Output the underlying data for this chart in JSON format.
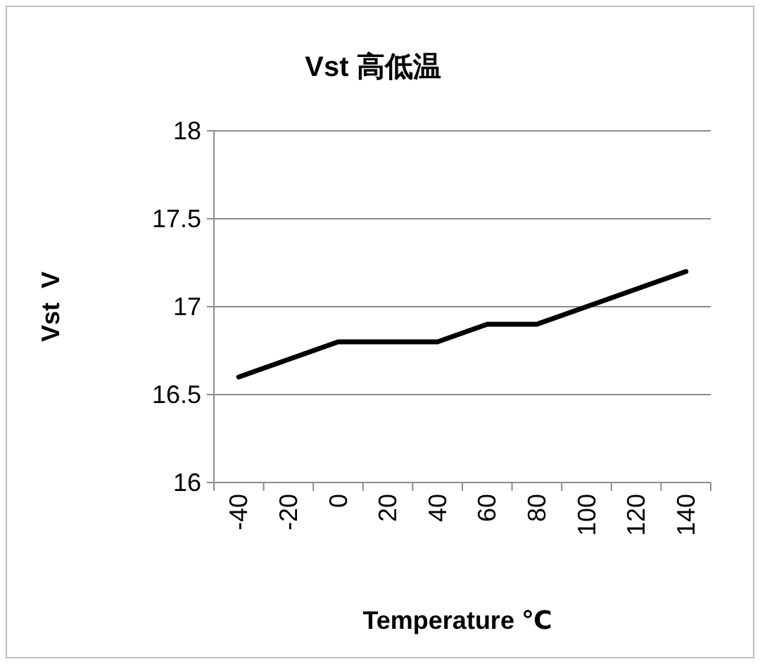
{
  "chart_data": {
    "type": "line",
    "title": "Vst 高低温",
    "xlabel": "Temperature ℃",
    "ylabel": "Vst  V",
    "categories": [
      "-40",
      "-20",
      "0",
      "20",
      "40",
      "60",
      "80",
      "100",
      "120",
      "140"
    ],
    "series": [
      {
        "color": "#000000",
        "values": [
          16.6,
          16.7,
          16.8,
          16.8,
          16.8,
          16.9,
          16.9,
          17.0,
          17.1,
          17.2
        ]
      }
    ],
    "ylim": [
      16,
      18
    ],
    "yticks": [
      16,
      16.5,
      17,
      17.5,
      18
    ],
    "grid": "y",
    "marker": "none",
    "line_style": "solid"
  }
}
